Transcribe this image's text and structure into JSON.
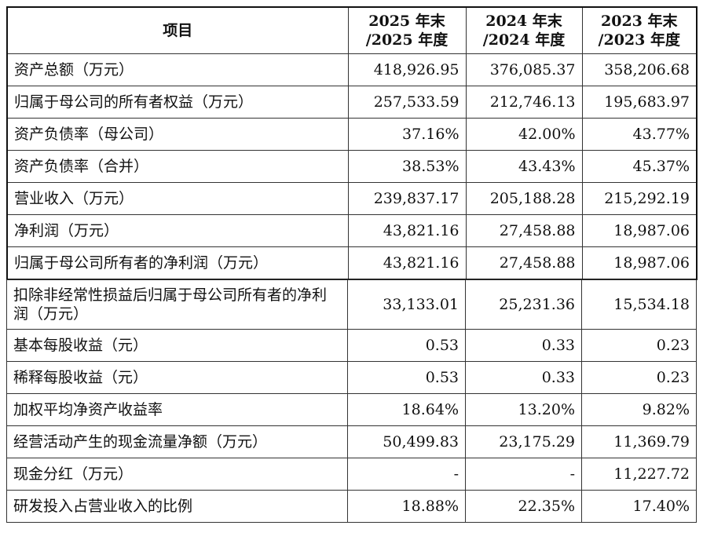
{
  "table": {
    "headers": {
      "item": "项目",
      "col1_line1": "2025 年末",
      "col1_line2": "/2025 年度",
      "col2_line1": "2024 年末",
      "col2_line2": "/2024 年度",
      "col3_line1": "2023 年末",
      "col3_line2": "/2023 年度"
    },
    "rows": [
      {
        "label": "资产总额（万元）",
        "v2025": "418,926.95",
        "v2024": "376,085.37",
        "v2023": "358,206.68"
      },
      {
        "label": "归属于母公司的所有者权益（万元）",
        "v2025": "257,533.59",
        "v2024": "212,746.13",
        "v2023": "195,683.97"
      },
      {
        "label": "资产负债率（母公司）",
        "v2025": "37.16%",
        "v2024": "42.00%",
        "v2023": "43.77%"
      },
      {
        "label": "资产负债率（合并）",
        "v2025": "38.53%",
        "v2024": "43.43%",
        "v2023": "45.37%"
      },
      {
        "label": "营业收入（万元）",
        "v2025": "239,837.17",
        "v2024": "205,188.28",
        "v2023": "215,292.19"
      },
      {
        "label": "净利润（万元）",
        "v2025": "43,821.16",
        "v2024": "27,458.88",
        "v2023": "18,987.06"
      },
      {
        "label": "归属于母公司所有者的净利润（万元）",
        "v2025": "43,821.16",
        "v2024": "27,458.88",
        "v2023": "18,987.06"
      },
      {
        "label": "扣除非经常性损益后归属于母公司所有者的净利润（万元）",
        "v2025": "33,133.01",
        "v2024": "25,231.36",
        "v2023": "15,534.18"
      },
      {
        "label": "基本每股收益（元）",
        "v2025": "0.53",
        "v2024": "0.33",
        "v2023": "0.23"
      },
      {
        "label": "稀释每股收益（元）",
        "v2025": "0.53",
        "v2024": "0.33",
        "v2023": "0.23"
      },
      {
        "label": "加权平均净资产收益率",
        "v2025": "18.64%",
        "v2024": "13.20%",
        "v2023": "9.82%"
      },
      {
        "label": "经营活动产生的现金流量净额（万元）",
        "v2025": "50,499.83",
        "v2024": "23,175.29",
        "v2023": "11,369.79"
      },
      {
        "label": "现金分红（万元）",
        "v2025": "-",
        "v2024": "-",
        "v2023": "11,227.72"
      },
      {
        "label": "研发投入占营业收入的比例",
        "v2025": "18.88%",
        "v2024": "22.35%",
        "v2023": "17.40%"
      }
    ]
  }
}
